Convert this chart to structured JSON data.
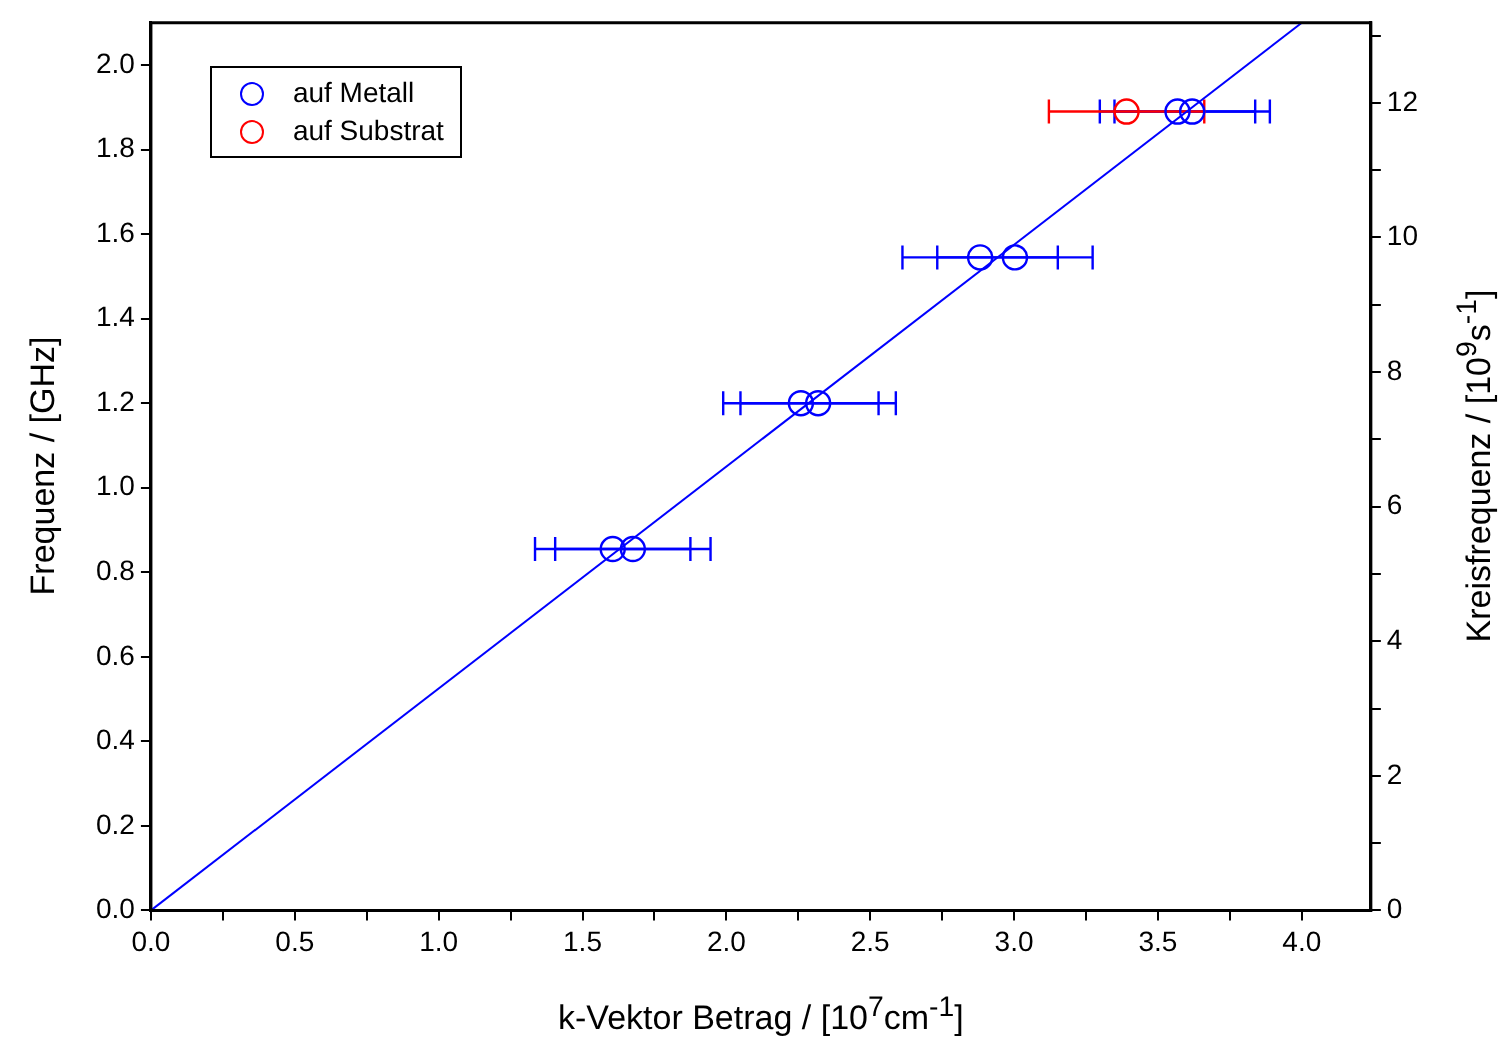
{
  "chart_data": {
    "type": "scatter",
    "xlabel": "k-Vektor Betrag / [10$^{7}$cm$^{-1}$]",
    "ylabel": "Frequenz / [GHz]",
    "y2label": "Kreisfrequenz / [10$^{9}$s$^{-1}$]",
    "xlim": [
      0,
      4.24
    ],
    "ylim": [
      0,
      2.1
    ],
    "y2lim": [
      0,
      13.19
    ],
    "xticks": [
      {
        "value": 0,
        "label": "0.0"
      },
      {
        "value": 0.25,
        "label": null
      },
      0.5,
      {
        "value": 0.75,
        "label": null
      },
      {
        "value": 1,
        "label": "1.0"
      },
      {
        "value": 1.25,
        "label": null
      },
      1.5,
      {
        "value": 1.75,
        "label": null
      },
      {
        "value": 2,
        "label": "2.0"
      },
      {
        "value": 2.25,
        "label": null
      },
      2.5,
      {
        "value": 2.75,
        "label": null
      },
      {
        "value": 3,
        "label": "3.0"
      },
      {
        "value": 3.25,
        "label": null
      },
      3.5,
      {
        "value": 3.75,
        "label": null
      },
      {
        "value": 4,
        "label": "4.0"
      }
    ],
    "yticks": [
      {
        "value": 0,
        "label": "0.0"
      },
      0.2,
      0.4,
      0.6,
      0.8,
      {
        "value": 1,
        "label": "1.0"
      },
      1.2,
      1.4,
      1.6,
      1.8,
      {
        "value": 2,
        "label": "2.0"
      }
    ],
    "y2ticks": [
      0,
      {
        "value": 1,
        "label": null
      },
      2,
      {
        "value": 3,
        "label": null
      },
      4,
      {
        "value": 5,
        "label": null
      },
      6,
      {
        "value": 7,
        "label": null
      },
      8,
      {
        "value": 9,
        "label": null
      },
      10,
      {
        "value": 11,
        "label": null
      },
      12,
      {
        "value": 13,
        "label": null
      }
    ],
    "marker": "circle",
    "legend": "top left",
    "series": [
      {
        "name": "auf Metall",
        "type": "scatter",
        "color": "#0000ff",
        "x": [
          1.605,
          1.675,
          2.259,
          2.319,
          2.882,
          3.003,
          3.568,
          3.619
        ],
        "values": [
          0.855,
          0.855,
          1.2,
          1.2,
          1.545,
          1.545,
          1.89,
          1.89
        ],
        "xerrors": [
          0.27,
          0.27,
          0.27,
          0.27,
          0.27,
          0.27,
          0.27,
          0.27
        ]
      },
      {
        "name": "auf Substrat",
        "type": "scatter",
        "color": "#ff0000",
        "x": [
          3.391
        ],
        "values": [
          1.89
        ],
        "xerrors": [
          0.27
        ]
      },
      {
        "type": "line",
        "marker": "none",
        "color": "#0000ff",
        "x": [
          0,
          4.0
        ],
        "values": [
          0,
          2.1
        ]
      }
    ]
  }
}
